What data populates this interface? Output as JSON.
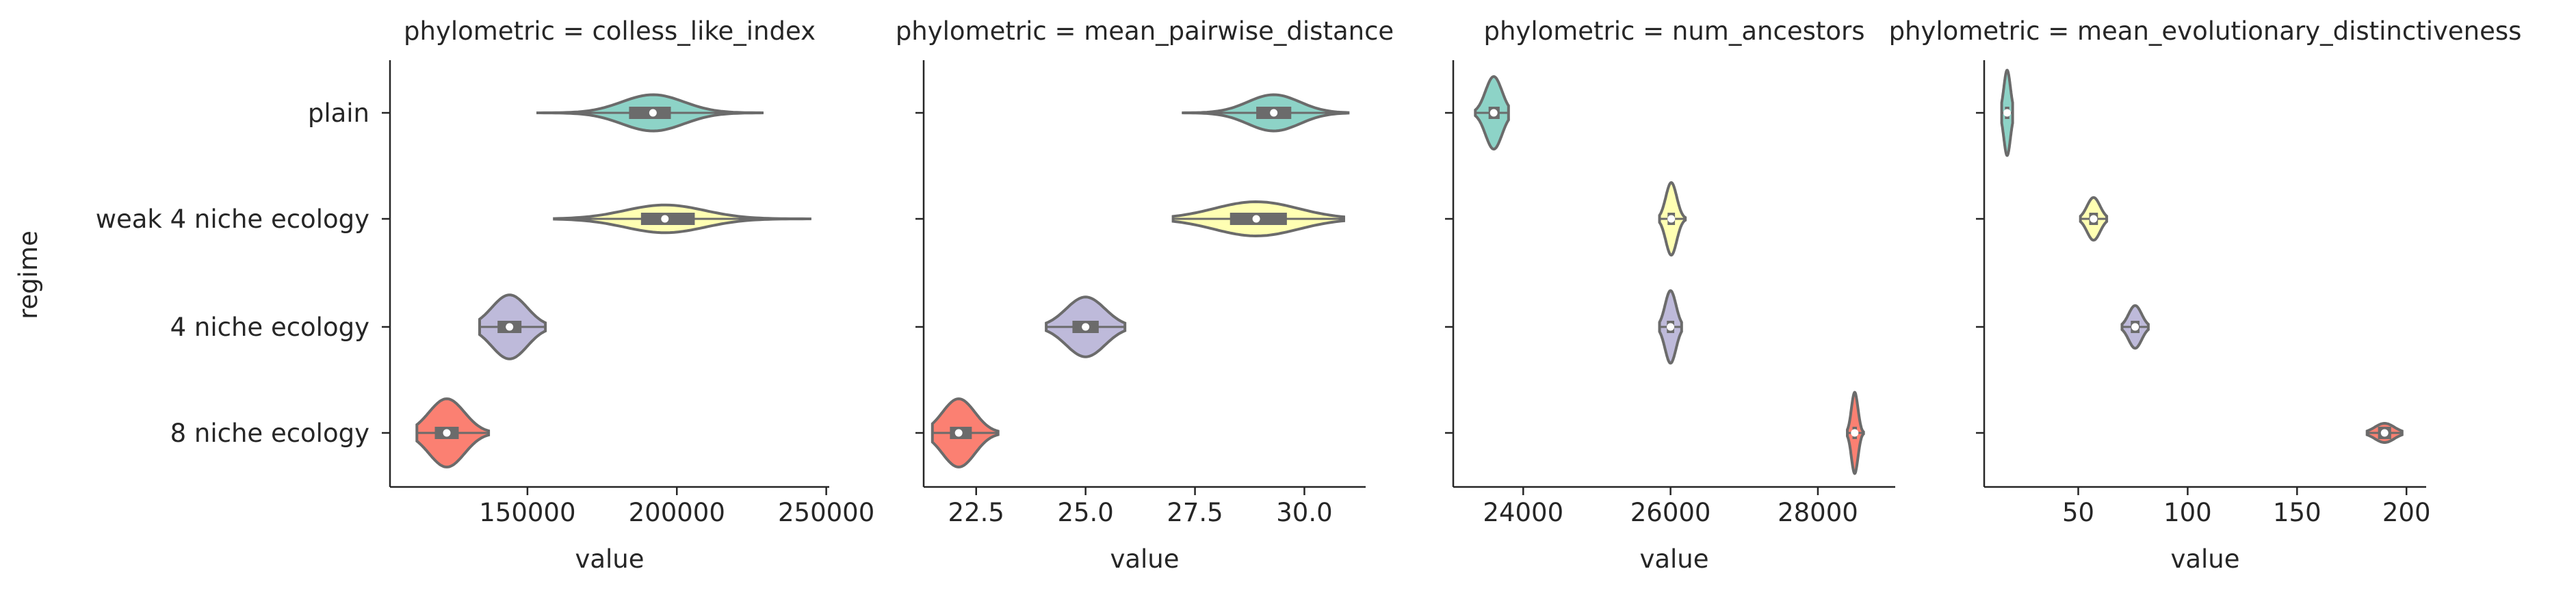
{
  "chart_data": {
    "type": "violin",
    "ylabel": "regime",
    "categories": [
      "plain",
      "weak 4 niche ecology",
      "4 niche ecology",
      "8 niche ecology"
    ],
    "category_colors": [
      "#8dd3c7",
      "#ffffb3",
      "#bebada",
      "#fb8072"
    ],
    "outline_color": "#6b6b6b",
    "grid": false,
    "panels": [
      {
        "title": "phylometric = colless_like_index",
        "xlabel": "value",
        "xlim": [
          104000,
          251000
        ],
        "xticks": [
          150000,
          200000,
          250000
        ],
        "xticklabels": [
          "150000",
          "200000",
          "250000"
        ],
        "violins": [
          {
            "category": "plain",
            "min": 153000,
            "q1": 184000,
            "median": 192000,
            "q3": 198000,
            "max": 229000,
            "width": 0.17
          },
          {
            "category": "weak 4 niche ecology",
            "min": 159000,
            "q1": 188000,
            "median": 196000,
            "q3": 206000,
            "max": 245000,
            "width": 0.13
          },
          {
            "category": "4 niche ecology",
            "min": 134000,
            "q1": 140000,
            "median": 144000,
            "q3": 148000,
            "max": 156000,
            "width": 0.3
          },
          {
            "category": "8 niche ecology",
            "min": 113000,
            "q1": 119000,
            "median": 123000,
            "q3": 127000,
            "max": 137000,
            "width": 0.32
          }
        ]
      },
      {
        "title": "phylometric = mean_pairwise_distance",
        "xlabel": "value",
        "xlim": [
          21.3,
          31.4
        ],
        "xticks": [
          22.5,
          25.0,
          27.5,
          30.0
        ],
        "xticklabels": [
          "22.5",
          "25.0",
          "27.5",
          "30.0"
        ],
        "violins": [
          {
            "category": "plain",
            "min": 27.2,
            "q1": 28.9,
            "median": 29.3,
            "q3": 29.7,
            "max": 31.0,
            "width": 0.17
          },
          {
            "category": "weak 4 niche ecology",
            "min": 27.0,
            "q1": 28.3,
            "median": 28.9,
            "q3": 29.6,
            "max": 30.9,
            "width": 0.16
          },
          {
            "category": "4 niche ecology",
            "min": 24.1,
            "q1": 24.7,
            "median": 25.0,
            "q3": 25.3,
            "max": 25.9,
            "width": 0.28
          },
          {
            "category": "8 niche ecology",
            "min": 21.5,
            "q1": 21.9,
            "median": 22.1,
            "q3": 22.4,
            "max": 23.0,
            "width": 0.32
          }
        ]
      },
      {
        "title": "phylometric = num_ancestors",
        "xlabel": "value",
        "xlim": [
          23050,
          29050
        ],
        "xticks": [
          24000,
          26000,
          28000
        ],
        "xticklabels": [
          "24000",
          "26000",
          "28000"
        ],
        "violins": [
          {
            "category": "plain",
            "min": 23350,
            "q1": 23530,
            "median": 23600,
            "q3": 23680,
            "max": 23800,
            "width": 0.34
          },
          {
            "category": "weak 4 niche ecology",
            "min": 25850,
            "q1": 25960,
            "median": 26010,
            "q3": 26060,
            "max": 26200,
            "width": 0.34
          },
          {
            "category": "4 niche ecology",
            "min": 25850,
            "q1": 25950,
            "median": 26000,
            "q3": 26050,
            "max": 26150,
            "width": 0.34
          },
          {
            "category": "8 niche ecology",
            "min": 28400,
            "q1": 28470,
            "median": 28500,
            "q3": 28530,
            "max": 28620,
            "width": 0.38
          }
        ]
      },
      {
        "title": "phylometric = mean_evolutionary_distinctiveness",
        "xlabel": "value",
        "xlim": [
          7,
          209
        ],
        "xticks": [
          50,
          100,
          150,
          200
        ],
        "xticklabels": [
          "50",
          "100",
          "150",
          "200"
        ],
        "violins": [
          {
            "category": "plain",
            "min": 15,
            "q1": 16.5,
            "median": 17.5,
            "q3": 18.5,
            "max": 20,
            "width": 0.4
          },
          {
            "category": "weak 4 niche ecology",
            "min": 51,
            "q1": 55,
            "median": 57,
            "q3": 59,
            "max": 63,
            "width": 0.2
          },
          {
            "category": "4 niche ecology",
            "min": 70,
            "q1": 74,
            "median": 76,
            "q3": 78,
            "max": 82,
            "width": 0.2
          },
          {
            "category": "8 niche ecology",
            "min": 182,
            "q1": 187,
            "median": 190,
            "q3": 193,
            "max": 198,
            "width": 0.09
          }
        ]
      }
    ]
  }
}
